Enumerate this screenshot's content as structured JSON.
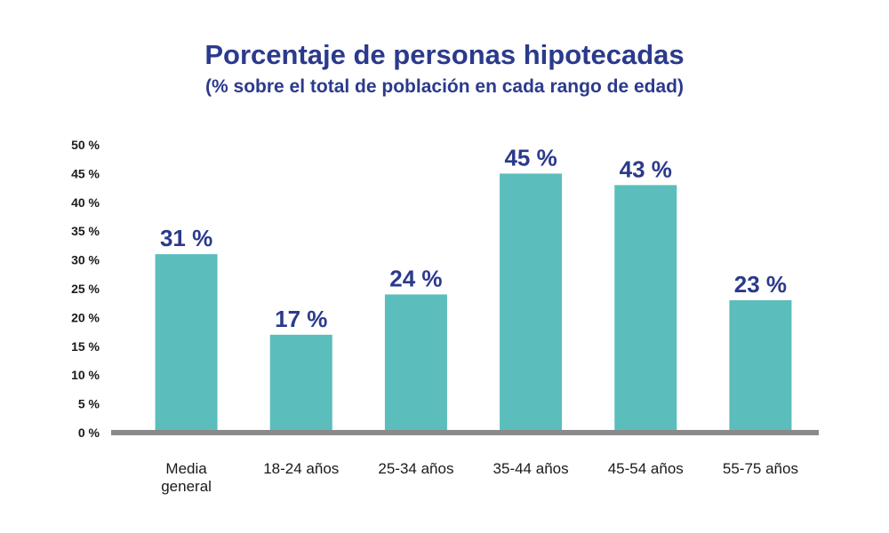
{
  "chart_data": {
    "type": "bar",
    "title": "Porcentaje de personas hipotecadas",
    "subtitle": "(% sobre el total de población en cada rango de edad)",
    "categories": [
      [
        "Media",
        "general"
      ],
      [
        "18-24 años"
      ],
      [
        "25-34 años"
      ],
      [
        "35-44 años"
      ],
      [
        "45-54 años"
      ],
      [
        "55-75 años"
      ]
    ],
    "values": [
      31,
      17,
      24,
      45,
      43,
      23
    ],
    "value_labels": [
      "31 %",
      "17 %",
      "24 %",
      "45 %",
      "43 %",
      "23 %"
    ],
    "ylim": [
      0,
      50
    ],
    "yticks": [
      0,
      5,
      10,
      15,
      20,
      25,
      30,
      35,
      40,
      45,
      50
    ],
    "ytick_labels": [
      "0 %",
      "5 %",
      "10 %",
      "15 %",
      "20 %",
      "25 %",
      "30 %",
      "35 %",
      "40 %",
      "45 %",
      "50 %"
    ],
    "grid": false,
    "colors": {
      "bar": "#5bbdbc",
      "axis": "#8a8a8a",
      "title": "#2b3a8c",
      "value_label": "#2b3a8c"
    }
  }
}
